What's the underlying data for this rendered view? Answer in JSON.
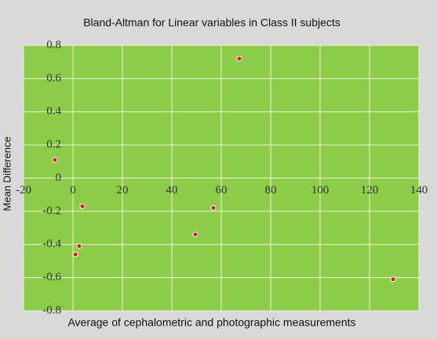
{
  "chart_data": {
    "type": "scatter",
    "title": "Bland-Altman for Linear variables in Class II subjects",
    "x_label": "Average of cephalometric and photographic measurements",
    "y_label": "Mean Difference",
    "x": [
      -7.3,
      67.3,
      3.8,
      56.8,
      49.5,
      2.5,
      1.0,
      129.5
    ],
    "values": [
      0.11,
      0.72,
      -0.17,
      -0.18,
      -0.34,
      -0.41,
      -0.46,
      -0.61
    ],
    "color": "#e8122a",
    "xlim": [
      -20,
      140
    ],
    "xticks": [
      -20,
      0,
      20,
      40,
      60,
      80,
      100,
      120,
      140
    ],
    "ylim": [
      -0.8,
      0.8
    ],
    "yticks": [
      0.8,
      0.6,
      0.4,
      0.2,
      0,
      -0.2,
      -0.4,
      -0.6,
      -0.8
    ],
    "grid": true
  }
}
